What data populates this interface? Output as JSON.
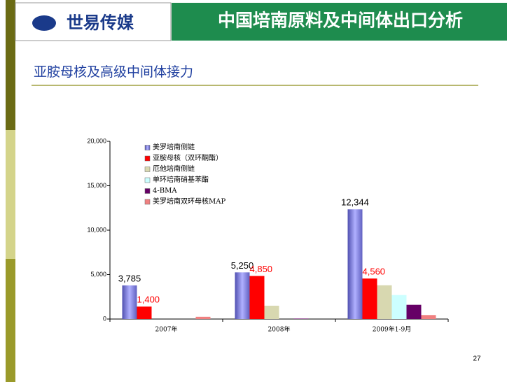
{
  "header": {
    "logo": "世易传媒",
    "title": "中国培南原料及中间体出口分析"
  },
  "subtitle": "亚胺母核及高级中间体接力",
  "page_number": "27",
  "chart_data": {
    "type": "bar",
    "categories": [
      "2007年",
      "2008年",
      "2009年1-9月"
    ],
    "series": [
      {
        "name": "美罗培南侧链",
        "color": "#8080e0",
        "values": [
          3785,
          5250,
          12344
        ],
        "value_labels": [
          "3,785",
          "5,250",
          "12,344"
        ]
      },
      {
        "name": "亚胺母核（双环酮酯）",
        "color": "#ff0000",
        "values": [
          1400,
          4850,
          4560
        ],
        "value_labels": [
          "1,400",
          "4,850",
          "4,560"
        ]
      },
      {
        "name": "厄他培南侧链",
        "color": "#d8d8b0",
        "values": [
          null,
          1500,
          3800
        ]
      },
      {
        "name": "单环培南硝基苯酯",
        "color": "#ccffff",
        "values": [
          null,
          null,
          2700
        ]
      },
      {
        "name": "4-BMA",
        "color": "#660066",
        "values": [
          null,
          50,
          1600
        ]
      },
      {
        "name": "美罗培南双环母核MAP",
        "color": "#f08080",
        "values": [
          250,
          null,
          450
        ]
      }
    ],
    "ylim": [
      0,
      20000
    ],
    "yticks": [
      0,
      {
        "value": 5000,
        "label": "5,000"
      },
      {
        "value": 10000,
        "label": "10,000"
      },
      {
        "value": 15000,
        "label": "15,000"
      },
      {
        "value": 20000,
        "label": "20,000"
      }
    ],
    "legend": "top-left"
  }
}
